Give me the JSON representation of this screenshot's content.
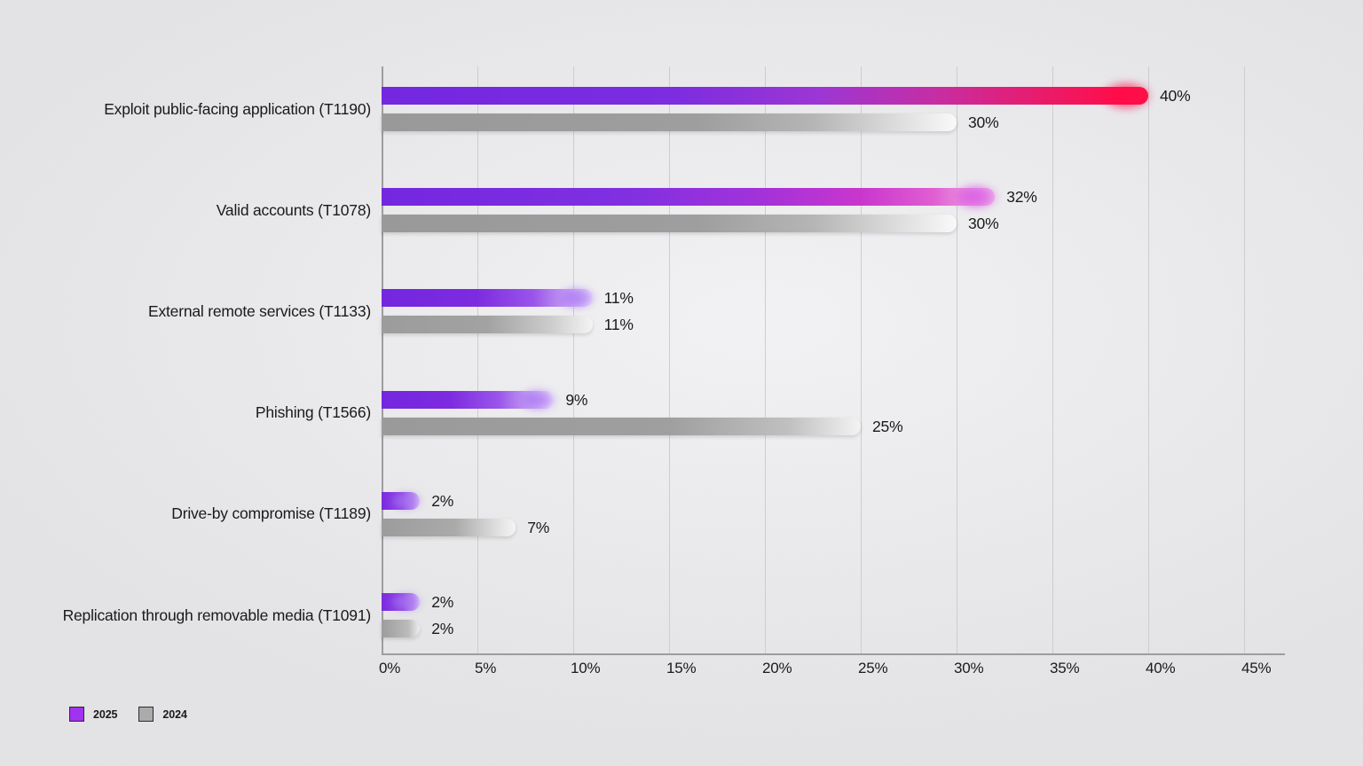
{
  "page": {
    "background_color": "#e8e8ea",
    "text_color": "#1a1a1a"
  },
  "chart_data": {
    "type": "bar",
    "orientation": "horizontal",
    "title": "",
    "xlabel": "",
    "ylabel": "",
    "categories": [
      "Exploit public-facing application (T1190)",
      "Valid accounts (T1078)",
      "External remote services (T1133)",
      "Phishing (T1566)",
      "Drive-by compromise (T1189)",
      "Replication through removable media (T1091)"
    ],
    "series": [
      {
        "name": "2025",
        "values": [
          40,
          32,
          11,
          9,
          2,
          2
        ]
      },
      {
        "name": "2024",
        "values": [
          30,
          30,
          11,
          25,
          7,
          2
        ]
      }
    ],
    "value_labels": [
      [
        "40%",
        "30%"
      ],
      [
        "32%",
        "30%"
      ],
      [
        "11%",
        "11%"
      ],
      [
        "9%",
        "25%"
      ],
      [
        "2%",
        "7%"
      ],
      [
        "2%",
        "2%"
      ]
    ],
    "x_ticks": [
      "0%",
      "5%",
      "10%",
      "15%",
      "20%",
      "25%",
      "30%",
      "35%",
      "40%",
      "45%"
    ],
    "xlim": [
      0,
      47
    ],
    "grid": "vertical",
    "legend_position": "bottom-left"
  },
  "legend": {
    "items": [
      {
        "label": "2025",
        "color": "#a133ee"
      },
      {
        "label": "2024",
        "color": "#ababab"
      }
    ]
  },
  "style": {
    "accent_purple": "#7327df",
    "accent_red_tip": "#ff1047",
    "accent_magenta_tip": "#e05ed2",
    "gray_bar": "#9c9c9c",
    "gridline_color": "#cdcdd1",
    "axis_color": "#9d9da1",
    "bars_2025": [
      {
        "stops": [
          "#7327df 0%",
          "#7c2de0 38%",
          "#9c36d4 57%",
          "#c52ea4 72%",
          "#e91b6b 86%",
          "#fe0f4b 96%",
          "#ff1447 100%"
        ],
        "glow": "#ff0b49",
        "glow_size": 48
      },
      {
        "stops": [
          "#7327df 0%",
          "#8030e1 40%",
          "#a332d9 62%",
          "#c936cd 78%",
          "#e05ed2 90%",
          "#f2bfec 100%"
        ],
        "glow": "#d64fe3",
        "glow_size": 42
      },
      {
        "stops": [
          "#7327df 0%",
          "#7d2be0 45%",
          "#9a55ea 72%",
          "#cba8f4 90%",
          "#eee3fb 100%"
        ],
        "glow": "#a873f2",
        "glow_size": 36
      },
      {
        "stops": [
          "#7327df 0%",
          "#7d2be0 40%",
          "#9a55ea 68%",
          "#cba8f4 88%",
          "#f0e7fc 100%"
        ],
        "glow": "#a873f2",
        "glow_size": 36
      },
      {
        "stops": [
          "#7b2ae0 0%",
          "#8f46e5 55%",
          "#bd92f0 85%",
          "#ddcbf8 100%"
        ],
        "glow": "#a978f0",
        "glow_size": 30
      },
      {
        "stops": [
          "#7b2ae0 0%",
          "#8f46e5 55%",
          "#bd92f0 85%",
          "#ddcbf8 100%"
        ],
        "glow": "#a978f0",
        "glow_size": 30
      }
    ],
    "bars_2024": [
      {
        "stops": [
          "#999999 0%",
          "#9e9e9e 55%",
          "#b5b5b5 75%",
          "#e3e3e3 92%",
          "#f9f9f9 100%"
        ],
        "glow": null
      },
      {
        "stops": [
          "#999999 0%",
          "#9e9e9e 55%",
          "#b5b5b5 75%",
          "#e3e3e3 92%",
          "#f9f9f9 100%"
        ],
        "glow": null
      },
      {
        "stops": [
          "#9c9c9c 0%",
          "#a2a2a2 50%",
          "#cccccc 80%",
          "#f4f4f4 100%"
        ],
        "glow": null
      },
      {
        "stops": [
          "#9a9a9a 0%",
          "#9f9f9f 60%",
          "#c0c0c0 85%",
          "#f3f3f3 100%"
        ],
        "glow": null
      },
      {
        "stops": [
          "#9c9c9c 0%",
          "#aaaaaa 55%",
          "#dddddd 85%",
          "#f5f5f5 100%"
        ],
        "glow": null
      },
      {
        "stops": [
          "#9c9c9c 0%",
          "#bbbbbb 70%",
          "#eeeeee 100%"
        ],
        "glow": null
      }
    ]
  }
}
